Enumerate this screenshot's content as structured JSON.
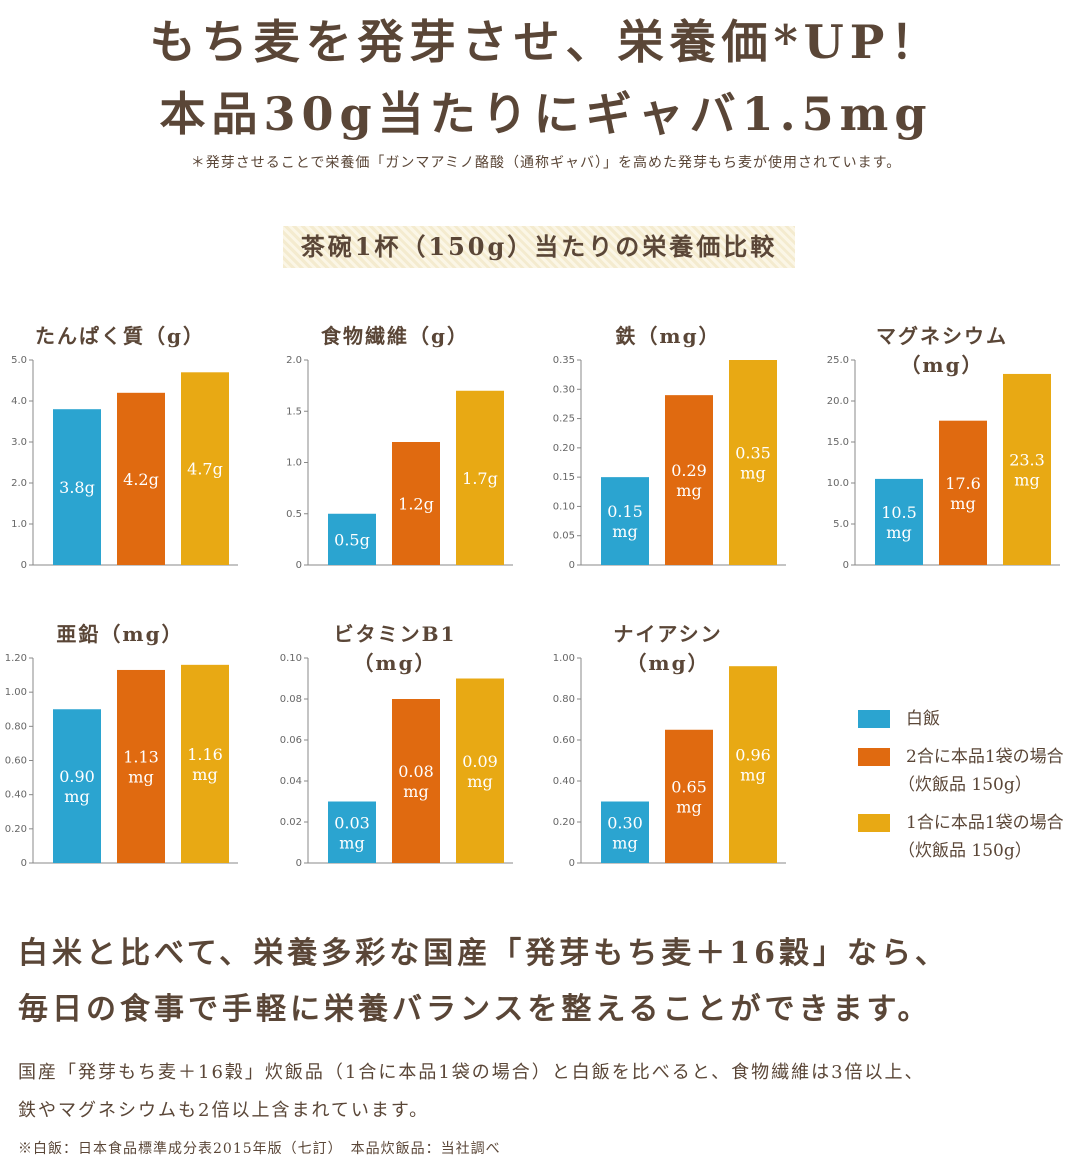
{
  "headline": {
    "line1": "もち麦を発芽させ、栄養価*UP！",
    "line2": "本品30g当たりにギャバ1.5mg"
  },
  "note": "＊発芽させることで栄養価「ガンマアミノ酪酸（通称ギャバ）」を高めた発芽もち麦が使用されています。",
  "section_title": "茶碗1杯（150g）当たりの栄養価比較",
  "colors": {
    "white_rice": "#2ba4d0",
    "two_go": "#e06a10",
    "one_go": "#e8a914"
  },
  "legend": [
    {
      "label": "白飯",
      "sub": "",
      "color": "#2ba4d0"
    },
    {
      "label": "2合に本品1袋の場合",
      "sub": "（炊飯品 150g）",
      "color": "#e06a10"
    },
    {
      "label": "1合に本品1袋の場合",
      "sub": "（炊飯品 150g）",
      "color": "#e8a914"
    }
  ],
  "chart_data": [
    {
      "type": "bar",
      "title": "たんぱく質（g）",
      "yticks": [
        "5.0",
        "4.0",
        "3.0",
        "2.0",
        "1.0",
        "0"
      ],
      "ylim": [
        0,
        5
      ],
      "values": [
        3.8,
        4.2,
        4.7
      ],
      "labels": [
        [
          "3.8g"
        ],
        [
          "4.2g"
        ],
        [
          "4.7g"
        ]
      ]
    },
    {
      "type": "bar",
      "title": "食物繊維（g）",
      "yticks": [
        "2.0",
        "1.5",
        "1.0",
        "0.5",
        "0"
      ],
      "ylim": [
        0,
        2
      ],
      "values": [
        0.5,
        1.2,
        1.7
      ],
      "labels": [
        [
          "0.5g"
        ],
        [
          "1.2g"
        ],
        [
          "1.7g"
        ]
      ]
    },
    {
      "type": "bar",
      "title": "鉄（mg）",
      "yticks": [
        "0.35",
        "0.30",
        "0.25",
        "0.20",
        "0.15",
        "0.10",
        "0.05",
        "0"
      ],
      "ylim": [
        0,
        0.35
      ],
      "values": [
        0.15,
        0.29,
        0.35
      ],
      "labels": [
        [
          "0.15",
          "mg"
        ],
        [
          "0.29",
          "mg"
        ],
        [
          "0.35",
          "mg"
        ]
      ]
    },
    {
      "type": "bar",
      "title": "マグネシウム（mg）",
      "yticks": [
        "25.0",
        "20.0",
        "15.0",
        "10.0",
        "5.0",
        "0"
      ],
      "ylim": [
        0,
        25
      ],
      "values": [
        10.5,
        17.6,
        23.3
      ],
      "labels": [
        [
          "10.5",
          "mg"
        ],
        [
          "17.6",
          "mg"
        ],
        [
          "23.3",
          "mg"
        ]
      ]
    },
    {
      "type": "bar",
      "title": "亜鉛（mg）",
      "yticks": [
        "1.20",
        "1.00",
        "0.80",
        "0.60",
        "0.40",
        "0.20",
        "0"
      ],
      "ylim": [
        0,
        1.2
      ],
      "values": [
        0.9,
        1.13,
        1.16
      ],
      "labels": [
        [
          "0.90",
          "mg"
        ],
        [
          "1.13",
          "mg"
        ],
        [
          "1.16",
          "mg"
        ]
      ]
    },
    {
      "type": "bar",
      "title": "ビタミンB1（mg）",
      "yticks": [
        "0.10",
        "0.08",
        "0.06",
        "0.04",
        "0.02",
        "0"
      ],
      "ylim": [
        0,
        0.1
      ],
      "values": [
        0.03,
        0.08,
        0.09
      ],
      "labels": [
        [
          "0.03",
          "mg"
        ],
        [
          "0.08",
          "mg"
        ],
        [
          "0.09",
          "mg"
        ]
      ]
    },
    {
      "type": "bar",
      "title": "ナイアシン（mg）",
      "yticks": [
        "1.00",
        "0.80",
        "0.60",
        "0.40",
        "0.20",
        "0"
      ],
      "ylim": [
        0,
        1
      ],
      "values": [
        0.3,
        0.65,
        0.96
      ],
      "labels": [
        [
          "0.30",
          "mg"
        ],
        [
          "0.65",
          "mg"
        ],
        [
          "0.96",
          "mg"
        ]
      ]
    }
  ],
  "summary": {
    "line1": "白米と比べて、栄養多彩な国産「発芽もち麦＋16穀」なら、",
    "line2": "毎日の食事で手軽に栄養バランスを整えることができます。"
  },
  "body": {
    "line1": "国産「発芽もち麦＋16穀」炊飯品（1合に本品1袋の場合）と白飯を比べると、食物繊維は3倍以上、",
    "line2": "鉄やマグネシウムも2倍以上含まれています。"
  },
  "footnote": "※白飯：日本食品標準成分表2015年版（七訂）　本品炊飯品：当社調べ"
}
